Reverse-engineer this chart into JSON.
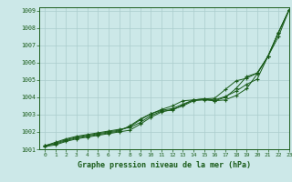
{
  "xlabel": "Graphe pression niveau de la mer (hPa)",
  "xlim": [
    -0.5,
    23
  ],
  "ylim": [
    1001,
    1009.2
  ],
  "yticks": [
    1001,
    1002,
    1003,
    1004,
    1005,
    1006,
    1007,
    1008,
    1009
  ],
  "xticks": [
    0,
    1,
    2,
    3,
    4,
    5,
    6,
    7,
    8,
    9,
    10,
    11,
    12,
    13,
    14,
    15,
    16,
    17,
    18,
    19,
    20,
    21,
    22,
    23
  ],
  "bg_color": "#cce8e8",
  "grid_color": "#aacccc",
  "line_color": "#1a5c1a",
  "series": [
    [
      1001.2,
      1001.4,
      1001.6,
      1001.75,
      1001.85,
      1001.95,
      1002.05,
      1002.15,
      1002.25,
      1002.55,
      1002.95,
      1003.2,
      1003.25,
      1003.55,
      1003.85,
      1003.9,
      1003.8,
      1003.85,
      1004.1,
      1004.5,
      1005.35,
      1006.35,
      1007.75,
      1009.05
    ],
    [
      1001.2,
      1001.35,
      1001.55,
      1001.7,
      1001.8,
      1001.9,
      1002.0,
      1002.1,
      1002.3,
      1002.7,
      1003.05,
      1003.25,
      1003.35,
      1003.6,
      1003.85,
      1003.9,
      1003.85,
      1004.05,
      1004.35,
      1004.75,
      1005.05,
      1006.35,
      1007.75,
      1009.05
    ],
    [
      1001.2,
      1001.3,
      1001.5,
      1001.65,
      1001.75,
      1001.85,
      1001.95,
      1002.05,
      1002.35,
      1002.75,
      1003.05,
      1003.3,
      1003.5,
      1003.8,
      1003.85,
      1003.9,
      1003.95,
      1004.45,
      1004.95,
      1005.1,
      1005.4,
      1006.35,
      1007.75,
      1009.05
    ],
    [
      1001.15,
      1001.25,
      1001.45,
      1001.6,
      1001.7,
      1001.8,
      1001.9,
      1002.0,
      1002.1,
      1002.45,
      1002.85,
      1003.15,
      1003.3,
      1003.5,
      1003.8,
      1003.85,
      1003.8,
      1004.0,
      1004.5,
      1005.2,
      1005.4,
      1006.35,
      1007.5,
      1009.05
    ]
  ]
}
